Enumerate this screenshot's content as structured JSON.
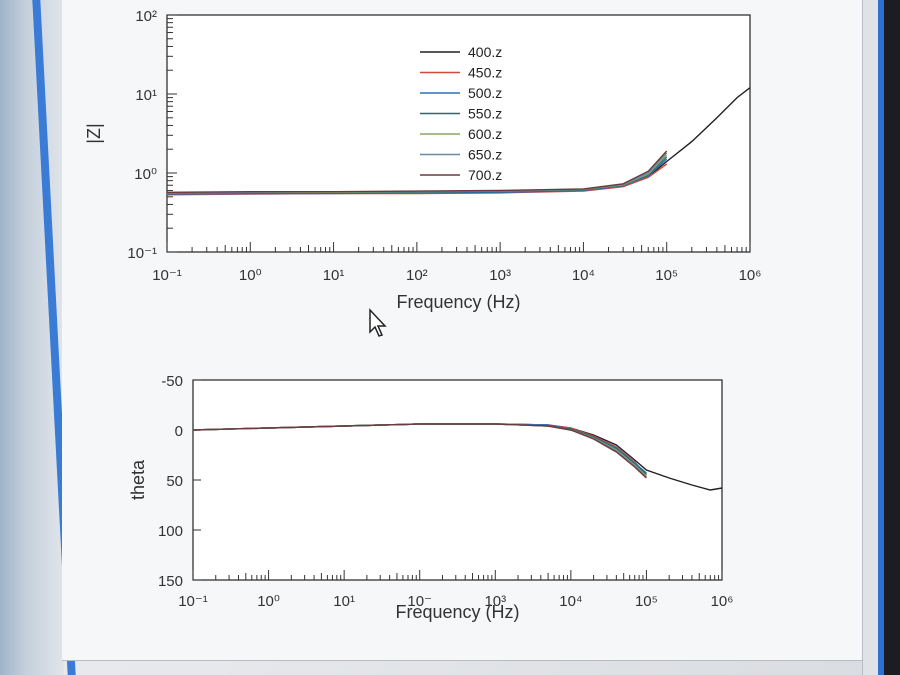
{
  "colors": {
    "400.z": "#202020",
    "450.z": "#d04a3a",
    "500.z": "#2a6fc0",
    "550.z": "#2a6a6a",
    "600.z": "#8aa860",
    "650.z": "#6a8aa0",
    "700.z": "#6b3a3a"
  },
  "chart_data": [
    {
      "type": "line",
      "xscale": "log",
      "yscale": "log",
      "xlabel": "Frequency (Hz)",
      "ylabel": "|Z|",
      "xlim": [
        0.1,
        1000000
      ],
      "ylim": [
        0.1,
        100
      ],
      "x_ticks": [
        "10⁻¹",
        "10⁰",
        "10¹",
        "10²",
        "10³",
        "10⁴",
        "10⁵",
        "10⁶"
      ],
      "y_ticks": [
        "10²",
        "10¹",
        "10⁰",
        "10⁻¹"
      ],
      "legend_position": "top-center",
      "x": [
        0.1,
        1,
        10,
        100,
        1000,
        10000,
        30000,
        60000,
        100000,
        200000,
        400000,
        700000,
        1000000
      ],
      "series": [
        {
          "name": "400.z",
          "values": [
            0.55,
            0.56,
            0.56,
            0.57,
            0.57,
            0.6,
            0.68,
            0.9,
            1.4,
            2.5,
            5,
            9,
            12
          ]
        },
        {
          "name": "450.z",
          "values": [
            0.53,
            0.54,
            0.55,
            0.55,
            0.56,
            0.59,
            0.67,
            0.88,
            1.3,
            null,
            null,
            null,
            null
          ]
        },
        {
          "name": "500.z",
          "values": [
            0.54,
            0.55,
            0.55,
            0.56,
            0.57,
            0.6,
            0.69,
            0.92,
            1.5,
            null,
            null,
            null,
            null
          ]
        },
        {
          "name": "550.z",
          "values": [
            0.55,
            0.56,
            0.56,
            0.57,
            0.58,
            0.61,
            0.7,
            0.95,
            1.6,
            null,
            null,
            null,
            null
          ]
        },
        {
          "name": "600.z",
          "values": [
            0.56,
            0.57,
            0.57,
            0.58,
            0.59,
            0.62,
            0.71,
            0.97,
            1.7,
            null,
            null,
            null,
            null
          ]
        },
        {
          "name": "650.z",
          "values": [
            0.56,
            0.57,
            0.58,
            0.58,
            0.59,
            0.62,
            0.72,
            1.0,
            1.8,
            null,
            null,
            null,
            null
          ]
        },
        {
          "name": "700.z",
          "values": [
            0.57,
            0.58,
            0.58,
            0.59,
            0.6,
            0.63,
            0.73,
            1.05,
            1.9,
            null,
            null,
            null,
            null
          ]
        }
      ]
    },
    {
      "type": "line",
      "xscale": "log",
      "xlabel": "Frequency (Hz)",
      "ylabel": "theta",
      "xlim": [
        0.1,
        1000000
      ],
      "ylim": [
        150,
        -50
      ],
      "x_ticks": [
        "10⁻¹",
        "10⁰",
        "10¹",
        "10⁻",
        "10³",
        "10⁴",
        "10⁵",
        "10⁶"
      ],
      "y_ticks": [
        "-50",
        "0",
        "50",
        "100",
        "150"
      ],
      "x": [
        0.1,
        1,
        10,
        100,
        1000,
        5000,
        10000,
        20000,
        40000,
        70000,
        100000,
        200000,
        400000,
        700000,
        1000000
      ],
      "series": [
        {
          "name": "400.z",
          "values": [
            0,
            -2,
            -4,
            -6,
            -6,
            -5,
            -2,
            5,
            15,
            30,
            40,
            48,
            55,
            60,
            58
          ]
        },
        {
          "name": "450.z",
          "values": [
            0,
            -2,
            -4,
            -6,
            -6,
            -5,
            -2,
            6,
            17,
            32,
            45,
            null,
            null,
            null,
            null
          ]
        },
        {
          "name": "500.z",
          "values": [
            0,
            -2,
            -4,
            -6,
            -6,
            -5,
            -1,
            7,
            18,
            33,
            43,
            null,
            null,
            null,
            null
          ]
        },
        {
          "name": "550.z",
          "values": [
            0,
            -2,
            -4,
            -6,
            -6,
            -4,
            -1,
            7,
            19,
            34,
            44,
            null,
            null,
            null,
            null
          ]
        },
        {
          "name": "600.z",
          "values": [
            0,
            -2,
            -4,
            -6,
            -6,
            -4,
            0,
            8,
            20,
            35,
            46,
            null,
            null,
            null,
            null
          ]
        },
        {
          "name": "650.z",
          "values": [
            0,
            -2,
            -4,
            -6,
            -6,
            -4,
            0,
            8,
            21,
            36,
            47,
            null,
            null,
            null,
            null
          ]
        },
        {
          "name": "700.z",
          "values": [
            0,
            -2,
            -4,
            -6,
            -6,
            -4,
            0,
            9,
            22,
            37,
            48,
            null,
            null,
            null,
            null
          ]
        }
      ]
    }
  ]
}
